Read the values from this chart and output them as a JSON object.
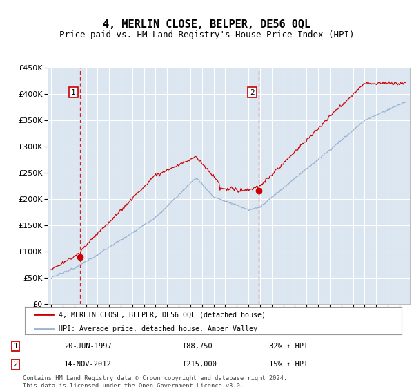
{
  "title": "4, MERLIN CLOSE, BELPER, DE56 0QL",
  "subtitle": "Price paid vs. HM Land Registry's House Price Index (HPI)",
  "ylim": [
    0,
    450000
  ],
  "yticks": [
    0,
    50000,
    100000,
    150000,
    200000,
    250000,
    300000,
    350000,
    400000,
    450000
  ],
  "background_color": "#dce6f1",
  "grid_color": "#ffffff",
  "hpi_color": "#99b3d0",
  "price_color": "#cc0000",
  "sale1_date": 1997.47,
  "sale1_price": 88750,
  "sale2_date": 2012.87,
  "sale2_price": 215000,
  "vline_color": "#cc0000",
  "marker_color": "#cc0000",
  "legend_hpi_label": "HPI: Average price, detached house, Amber Valley",
  "legend_price_label": "4, MERLIN CLOSE, BELPER, DE56 0QL (detached house)",
  "annotation1_label": "1",
  "annotation2_label": "2",
  "table_row1": [
    "1",
    "20-JUN-1997",
    "£88,750",
    "32% ↑ HPI"
  ],
  "table_row2": [
    "2",
    "14-NOV-2012",
    "£215,000",
    "15% ↑ HPI"
  ],
  "footer": "Contains HM Land Registry data © Crown copyright and database right 2024.\nThis data is licensed under the Open Government Licence v3.0.",
  "title_fontsize": 11,
  "subtitle_fontsize": 9,
  "xlim_left": 1994.7,
  "xlim_right": 2025.9,
  "xtick_start": 1995,
  "xtick_end": 2026
}
